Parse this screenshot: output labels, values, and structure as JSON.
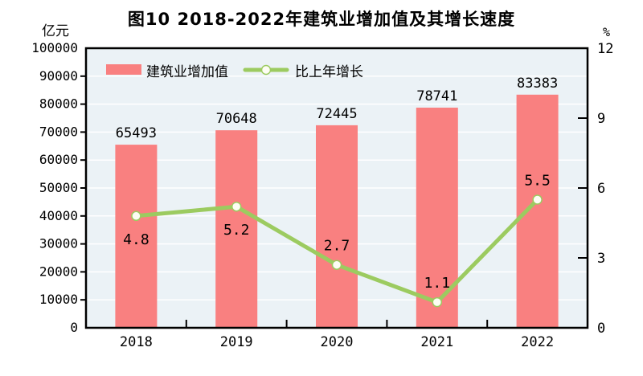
{
  "chart": {
    "title": "图10  2018-2022年建筑业增加值及其增长速度",
    "left_axis": {
      "unit": "亿元",
      "tick_labels": [
        "0",
        "10000",
        "20000",
        "30000",
        "40000",
        "50000",
        "60000",
        "70000",
        "80000",
        "90000",
        "100000"
      ]
    },
    "right_axis": {
      "unit": "%",
      "tick_labels": [
        "0",
        "3",
        "6",
        "9",
        "12"
      ]
    }
  },
  "chart_data": {
    "type": "bar",
    "subtype": "bar-line-combo",
    "title": "图10 2018-2022年建筑业增加值及其增长速度",
    "categories": [
      "2018",
      "2019",
      "2020",
      "2021",
      "2022"
    ],
    "series": [
      {
        "name": "建筑业增加值",
        "type": "bar",
        "axis": "left",
        "color": "#F98080",
        "values": [
          65493,
          70648,
          72445,
          78741,
          83383
        ],
        "value_labels": [
          "65493",
          "70648",
          "72445",
          "78741",
          "83383"
        ]
      },
      {
        "name": "比上年增长",
        "type": "line",
        "axis": "right",
        "color": "#9CCB60",
        "marker_fill": "#FDFDF4",
        "values": [
          4.8,
          5.2,
          2.7,
          1.1,
          5.5
        ],
        "value_labels": [
          "4.8",
          "5.2",
          "2.7",
          "1.1",
          "5.5"
        ],
        "label_positions": [
          "below",
          "below",
          "above",
          "above",
          "above"
        ]
      }
    ],
    "left_ylabel": "亿元",
    "right_ylabel": "%",
    "left_ylim": [
      0,
      100000
    ],
    "left_step": 10000,
    "right_ylim": [
      0,
      12
    ],
    "right_step": 3,
    "grid": true,
    "grid_color": "#FFFFFF",
    "plot_bg": "#EBF2F6",
    "frame_color": "#000000",
    "legend_position": "top-left-inside"
  }
}
